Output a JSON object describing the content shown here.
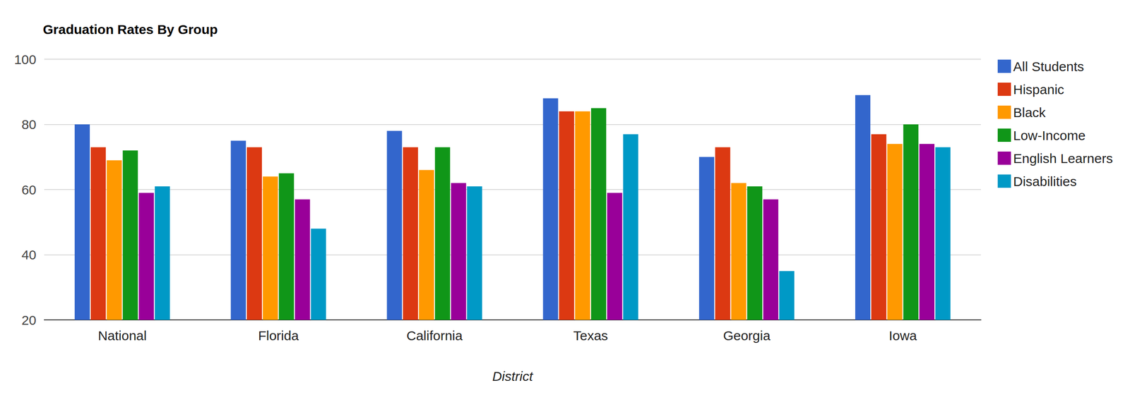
{
  "chart_data": {
    "type": "bar",
    "title": "Graduation Rates By Group",
    "x_label": "District",
    "categories": [
      "National",
      "Florida",
      "California",
      "Texas",
      "Georgia",
      "Iowa"
    ],
    "series": [
      {
        "name": "All Students",
        "color": "#3366cc",
        "values": [
          80,
          75,
          78,
          88,
          70,
          89
        ]
      },
      {
        "name": "Hispanic",
        "color": "#dc3912",
        "values": [
          73,
          73,
          73,
          84,
          73,
          77
        ]
      },
      {
        "name": "Black",
        "color": "#ff9900",
        "values": [
          69,
          64,
          66,
          84,
          62,
          74
        ]
      },
      {
        "name": "Low-Income",
        "color": "#109618",
        "values": [
          72,
          65,
          73,
          85,
          61,
          80
        ]
      },
      {
        "name": "English Learners",
        "color": "#990099",
        "values": [
          59,
          57,
          62,
          59,
          57,
          74
        ]
      },
      {
        "name": "Disabilities",
        "color": "#0099c6",
        "values": [
          61,
          48,
          61,
          77,
          35,
          73
        ]
      }
    ],
    "ylim": [
      20,
      100
    ],
    "yticks": [
      20,
      40,
      60,
      80,
      100
    ],
    "grid": true,
    "legend": "right"
  }
}
